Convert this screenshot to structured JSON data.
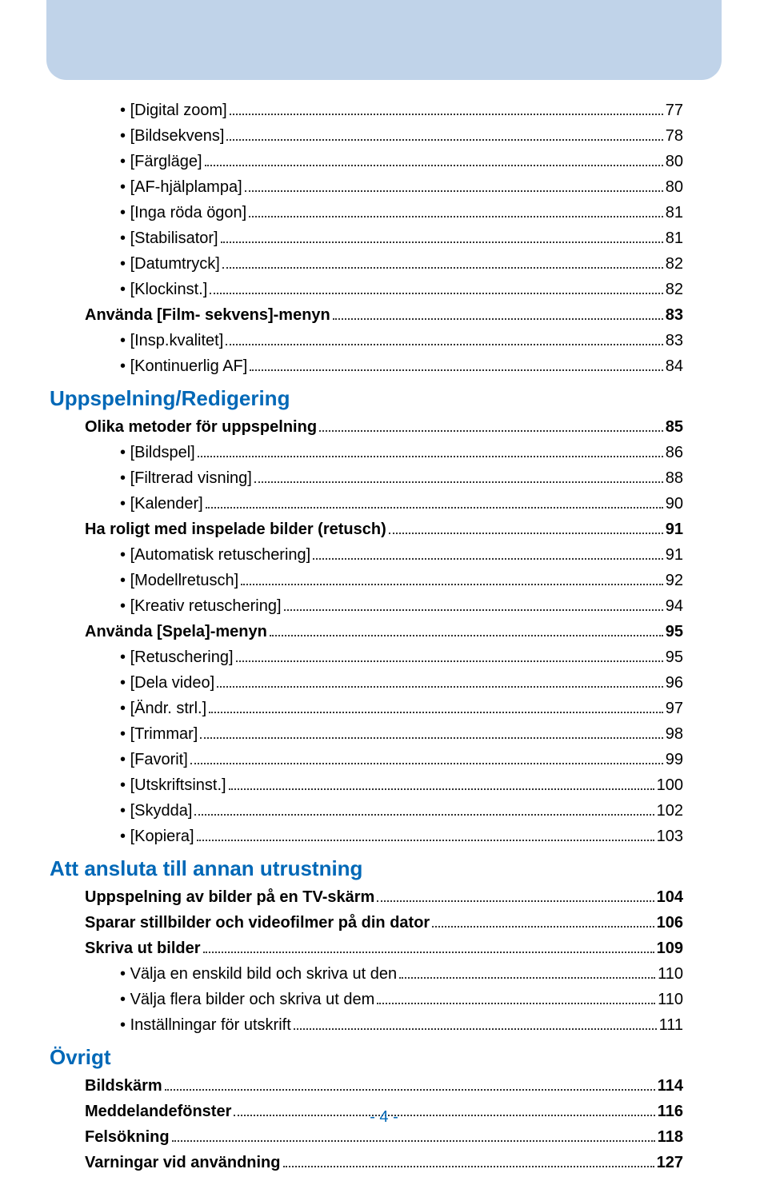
{
  "colors": {
    "banner": "#c0d3e9",
    "blue": "#0068b7",
    "black": "#000000",
    "background": "#ffffff"
  },
  "page_number": "- 4 -",
  "toc": [
    {
      "type": "bullet",
      "label": "[Digital zoom]",
      "page": "77"
    },
    {
      "type": "bullet",
      "label": "[Bildsekvens]",
      "page": "78"
    },
    {
      "type": "bullet",
      "label": "[Färgläge]",
      "page": "80"
    },
    {
      "type": "bullet",
      "label": "[AF-hjälplampa]",
      "page": "80"
    },
    {
      "type": "bullet",
      "label": "[Inga röda ögon]",
      "page": "81"
    },
    {
      "type": "bullet",
      "label": "[Stabilisator]",
      "page": "81"
    },
    {
      "type": "bullet",
      "label": "[Datumtryck]",
      "page": "82"
    },
    {
      "type": "bullet",
      "label": "[Klockinst.]",
      "page": "82"
    },
    {
      "type": "bold",
      "label": "Använda [Film- sekvens]-menyn",
      "page": "83"
    },
    {
      "type": "bullet",
      "label": "[Insp.kvalitet]",
      "page": "83"
    },
    {
      "type": "bullet",
      "label": "[Kontinuerlig AF]",
      "page": "84"
    },
    {
      "type": "section",
      "label": "Uppspelning/Redigering"
    },
    {
      "type": "bold",
      "label": "Olika metoder för uppspelning",
      "page": "85"
    },
    {
      "type": "bullet",
      "label": "[Bildspel]",
      "page": "86"
    },
    {
      "type": "bullet",
      "label": "[Filtrerad visning]",
      "page": "88"
    },
    {
      "type": "bullet",
      "label": "[Kalender]",
      "page": "90"
    },
    {
      "type": "bold",
      "label": "Ha roligt med inspelade bilder (retusch)",
      "page": "91"
    },
    {
      "type": "bullet",
      "label": "[Automatisk retuschering]",
      "page": "91"
    },
    {
      "type": "bullet",
      "label": "[Modellretusch]",
      "page": "92"
    },
    {
      "type": "bullet",
      "label": "[Kreativ retuschering]",
      "page": "94"
    },
    {
      "type": "bold",
      "label": "Använda [Spela]-menyn",
      "page": "95"
    },
    {
      "type": "bullet",
      "label": "[Retuschering]",
      "page": "95"
    },
    {
      "type": "bullet",
      "label": "[Dela video]",
      "page": "96"
    },
    {
      "type": "bullet",
      "label": "[Ändr. strl.]",
      "page": "97"
    },
    {
      "type": "bullet",
      "label": "[Trimmar]",
      "page": "98"
    },
    {
      "type": "bullet",
      "label": "[Favorit]",
      "page": "99"
    },
    {
      "type": "bullet",
      "label": "[Utskriftsinst.]",
      "page": "100"
    },
    {
      "type": "bullet",
      "label": "[Skydda]",
      "page": "102"
    },
    {
      "type": "bullet",
      "label": "[Kopiera]",
      "page": "103"
    },
    {
      "type": "section",
      "label": "Att ansluta till annan utrustning"
    },
    {
      "type": "bold",
      "label": "Uppspelning av bilder på en TV-skärm",
      "page": "104"
    },
    {
      "type": "bold",
      "label": "Sparar stillbilder och videofilmer på din dator",
      "page": "106"
    },
    {
      "type": "bold",
      "label": "Skriva ut bilder",
      "page": "109"
    },
    {
      "type": "bullet",
      "label": "Välja en enskild bild och skriva ut den",
      "page": "110"
    },
    {
      "type": "bullet",
      "label": "Välja flera bilder och skriva ut dem",
      "page": "110"
    },
    {
      "type": "bullet",
      "label": "Inställningar för utskrift",
      "page": "111"
    },
    {
      "type": "section",
      "label": "Övrigt"
    },
    {
      "type": "bold",
      "label": "Bildskärm",
      "page": "114"
    },
    {
      "type": "bold",
      "label": "Meddelandefönster",
      "page": "116"
    },
    {
      "type": "bold",
      "label": "Felsökning",
      "page": "118"
    },
    {
      "type": "bold",
      "label": "Varningar vid användning",
      "page": "127"
    }
  ]
}
